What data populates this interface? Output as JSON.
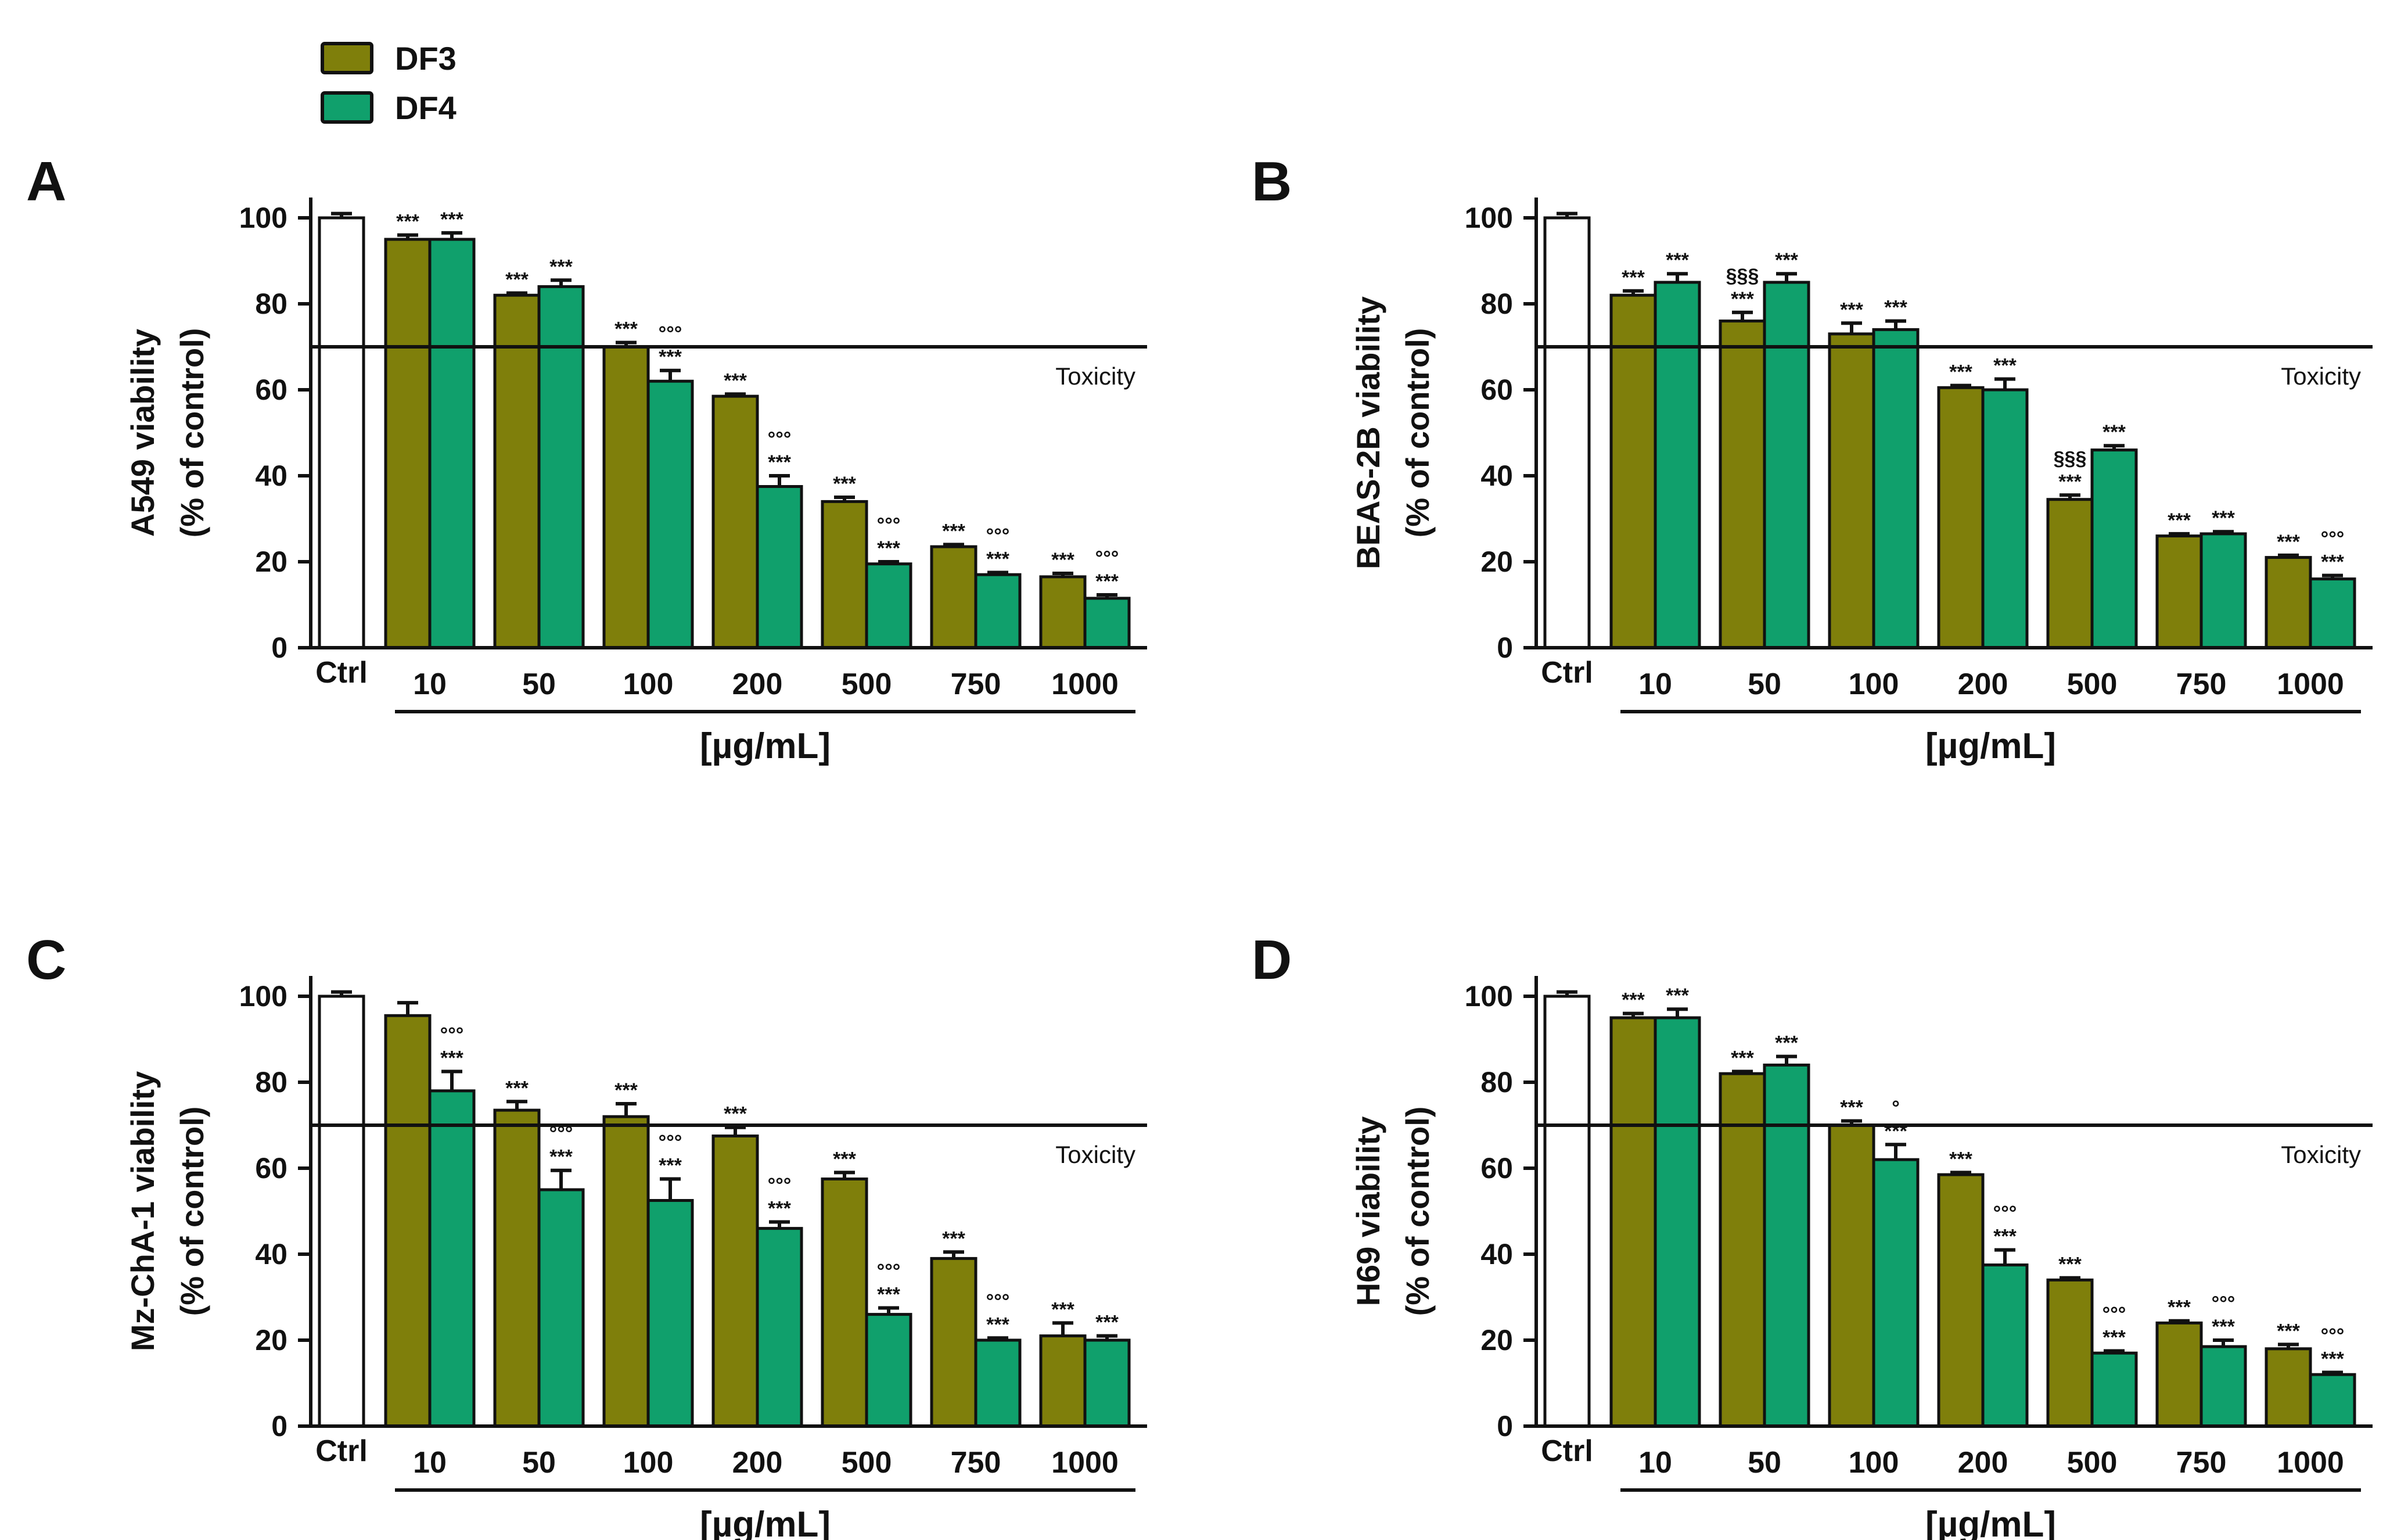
{
  "legend": {
    "entries": [
      {
        "name": "DF3",
        "color": "#7f7f0b"
      },
      {
        "name": "DF4",
        "color": "#10a06c"
      }
    ]
  },
  "chart_data": [
    {
      "type": "bar",
      "panel": "A",
      "ylabel_line1": "A549 viability",
      "ylabel_line2": "(% of control)",
      "xlabel": "[µg/mL]",
      "ylim": [
        0,
        100
      ],
      "yticks": [
        0,
        20,
        40,
        60,
        80,
        100
      ],
      "threshold": {
        "value": 70,
        "label": "Toxicity"
      },
      "control": {
        "label": "Ctrl",
        "value": 100,
        "error": 1
      },
      "categories": [
        "10",
        "50",
        "100",
        "200",
        "500",
        "750",
        "1000"
      ],
      "series": [
        {
          "name": "DF3",
          "values": [
            95,
            82,
            70,
            58.5,
            34,
            23.5,
            16.5
          ],
          "errors": [
            1,
            0.5,
            1,
            0.5,
            1,
            0.5,
            0.8
          ],
          "significance": [
            "***",
            "***",
            "***",
            "***",
            "***",
            "***",
            "***"
          ]
        },
        {
          "name": "DF4",
          "values": [
            95,
            84,
            62,
            37.5,
            19.5,
            17,
            11.5
          ],
          "errors": [
            1.5,
            1.5,
            2.5,
            2.5,
            0.5,
            0.5,
            0.8
          ],
          "significance": [
            "***",
            "***",
            "°°° ***",
            "°°° ***",
            "°°° ***",
            "°°° ***",
            "°°° ***"
          ]
        }
      ]
    },
    {
      "type": "bar",
      "panel": "B",
      "ylabel_line1": "BEAS-2B viability",
      "ylabel_line2": "(% of control)",
      "xlabel": "[µg/mL]",
      "ylim": [
        0,
        100
      ],
      "yticks": [
        0,
        20,
        40,
        60,
        80,
        100
      ],
      "threshold": {
        "value": 70,
        "label": "Toxicity"
      },
      "control": {
        "label": "Ctrl",
        "value": 100,
        "error": 1
      },
      "categories": [
        "10",
        "50",
        "100",
        "200",
        "500",
        "750",
        "1000"
      ],
      "series": [
        {
          "name": "DF3",
          "values": [
            82,
            76,
            73,
            60.5,
            34.5,
            26,
            21
          ],
          "errors": [
            1,
            2,
            2.5,
            0.5,
            1,
            0.5,
            0.5
          ],
          "significance": [
            "***",
            "§§§ ***",
            "***",
            "***",
            "§§§ ***",
            "***",
            "***"
          ]
        },
        {
          "name": "DF4",
          "values": [
            85,
            85,
            74,
            60,
            46,
            26.5,
            16
          ],
          "errors": [
            2,
            2,
            2,
            2.5,
            1,
            0.5,
            0.8
          ],
          "significance": [
            "***",
            "***",
            "***",
            "***",
            "***",
            "***",
            "°°° ***"
          ]
        }
      ]
    },
    {
      "type": "bar",
      "panel": "C",
      "ylabel_line1": "Mz-ChA-1 viability",
      "ylabel_line2": "(% of control)",
      "xlabel": "[µg/mL]",
      "ylim": [
        0,
        100
      ],
      "yticks": [
        0,
        20,
        40,
        60,
        80,
        100
      ],
      "threshold": {
        "value": 70,
        "label": "Toxicity"
      },
      "control": {
        "label": "Ctrl",
        "value": 100,
        "error": 1
      },
      "categories": [
        "10",
        "50",
        "100",
        "200",
        "500",
        "750",
        "1000"
      ],
      "series": [
        {
          "name": "DF3",
          "values": [
            95.5,
            73.5,
            72,
            67.5,
            57.5,
            39,
            21
          ],
          "errors": [
            3,
            2,
            3,
            2,
            1.5,
            1.5,
            3
          ],
          "significance": [
            "",
            "***",
            "***",
            "***",
            "***",
            "***",
            "***"
          ]
        },
        {
          "name": "DF4",
          "values": [
            78,
            55,
            52.5,
            46,
            26,
            20,
            20
          ],
          "errors": [
            4.5,
            4.5,
            5,
            1.5,
            1.5,
            0.5,
            1
          ],
          "significance": [
            "°°° ***",
            "°°° ***",
            "°°° ***",
            "°°° ***",
            "°°° ***",
            "°°° ***",
            "***"
          ]
        }
      ]
    },
    {
      "type": "bar",
      "panel": "D",
      "ylabel_line1": "H69 viability",
      "ylabel_line2": "(% of control)",
      "xlabel": "[µg/mL]",
      "ylim": [
        0,
        100
      ],
      "yticks": [
        0,
        20,
        40,
        60,
        80,
        100
      ],
      "threshold": {
        "value": 70,
        "label": "Toxicity"
      },
      "control": {
        "label": "Ctrl",
        "value": 100,
        "error": 1
      },
      "categories": [
        "10",
        "50",
        "100",
        "200",
        "500",
        "750",
        "1000"
      ],
      "series": [
        {
          "name": "DF3",
          "values": [
            95,
            82,
            70,
            58.5,
            34,
            24,
            18
          ],
          "errors": [
            1,
            0.5,
            1,
            0.5,
            0.5,
            0.5,
            1
          ],
          "significance": [
            "***",
            "***",
            "***",
            "***",
            "***",
            "***",
            "***"
          ]
        },
        {
          "name": "DF4",
          "values": [
            95,
            84,
            62,
            37.5,
            17,
            18.5,
            12
          ],
          "errors": [
            2,
            2,
            3.5,
            3.5,
            0.5,
            1.5,
            0.5
          ],
          "significance": [
            "***",
            "***",
            "° ***",
            "°°° ***",
            "°°° ***",
            "°°° ***",
            "°°° ***"
          ]
        }
      ]
    }
  ]
}
